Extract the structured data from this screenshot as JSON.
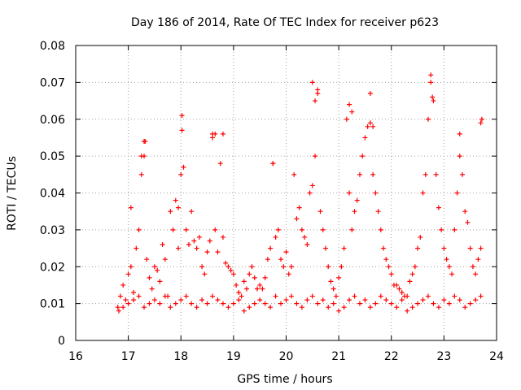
{
  "chart_data": {
    "type": "scatter",
    "title": "Day 186 of 2014, Rate Of TEC Index for receiver p623",
    "xlabel": "GPS time / hours",
    "ylabel": "ROTI / TECUs",
    "xlim": [
      16,
      24
    ],
    "ylim": [
      0,
      0.08
    ],
    "x_ticks": [
      "16",
      "17",
      "18",
      "19",
      "20",
      "21",
      "22",
      "23",
      "24"
    ],
    "y_ticks": [
      "0",
      "0.01",
      "0.02",
      "0.03",
      "0.04",
      "0.05",
      "0.06",
      "0.07",
      "0.08"
    ],
    "grid": true,
    "marker": "+",
    "color": "#ff0000",
    "series": [
      {
        "name": "ROTI",
        "x": [
          16.8,
          16.85,
          16.9,
          16.95,
          17.0,
          17.05,
          17.1,
          17.15,
          17.2,
          17.25,
          17.3,
          17.32,
          17.35,
          17.4,
          17.45,
          17.5,
          17.55,
          17.6,
          17.65,
          17.7,
          17.75,
          17.8,
          17.85,
          17.9,
          17.95,
          18.0,
          18.02,
          18.05,
          18.1,
          18.15,
          18.2,
          18.25,
          18.3,
          18.35,
          18.4,
          18.45,
          18.5,
          18.55,
          18.6,
          18.65,
          18.7,
          18.75,
          18.8,
          18.85,
          18.9,
          18.95,
          19.0,
          19.05,
          19.1,
          19.15,
          19.2,
          19.25,
          19.3,
          19.35,
          19.4,
          19.45,
          19.5,
          19.55,
          19.6,
          19.65,
          19.7,
          19.75,
          19.8,
          19.85,
          19.9,
          19.95,
          20.0,
          20.05,
          20.1,
          20.15,
          20.2,
          20.25,
          20.3,
          20.35,
          20.4,
          20.45,
          20.5,
          20.55,
          20.6,
          20.65,
          20.7,
          20.75,
          20.8,
          20.85,
          20.9,
          20.95,
          21.0,
          21.05,
          21.1,
          21.15,
          21.2,
          21.25,
          21.3,
          21.35,
          21.4,
          21.45,
          21.5,
          21.55,
          21.6,
          21.65,
          21.7,
          21.75,
          21.8,
          21.85,
          21.9,
          21.95,
          22.0,
          22.05,
          22.1,
          22.15,
          22.2,
          22.25,
          22.3,
          22.35,
          22.4,
          22.45,
          22.5,
          22.55,
          22.6,
          22.65,
          22.7,
          22.75,
          22.8,
          22.85,
          22.9,
          22.95,
          23.0,
          23.05,
          23.1,
          23.15,
          23.2,
          23.25,
          23.3,
          23.35,
          23.4,
          23.45,
          23.5,
          23.55,
          23.6,
          23.65,
          23.7,
          23.72,
          16.82,
          16.9,
          17.0,
          17.1,
          17.2,
          17.3,
          17.4,
          17.5,
          17.6,
          17.7,
          17.8,
          17.9,
          18.0,
          18.1,
          18.2,
          18.3,
          18.4,
          18.5,
          18.6,
          18.7,
          18.8,
          18.9,
          19.0,
          19.1,
          19.2,
          19.3,
          19.4,
          19.5,
          19.6,
          19.7,
          19.8,
          19.9,
          20.0,
          20.1,
          20.2,
          20.3,
          20.4,
          20.5,
          20.6,
          20.7,
          20.8,
          20.9,
          21.0,
          21.1,
          21.2,
          21.3,
          21.4,
          21.5,
          21.6,
          21.7,
          21.8,
          21.9,
          22.0,
          22.1,
          22.2,
          22.3,
          22.4,
          22.5,
          22.6,
          22.7,
          22.8,
          22.9,
          23.0,
          23.1,
          23.2,
          23.3,
          23.4,
          23.5,
          23.6,
          23.7,
          17.05,
          17.25,
          17.3,
          17.95,
          18.02,
          18.6,
          18.65,
          18.8,
          19.75,
          20.5,
          20.55,
          20.6,
          21.2,
          21.25,
          21.6,
          21.65,
          22.75,
          22.78,
          23.3,
          23.7
        ],
        "y": [
          0.009,
          0.012,
          0.015,
          0.011,
          0.018,
          0.02,
          0.013,
          0.025,
          0.03,
          0.045,
          0.05,
          0.054,
          0.022,
          0.017,
          0.014,
          0.02,
          0.019,
          0.016,
          0.026,
          0.022,
          0.012,
          0.035,
          0.03,
          0.038,
          0.025,
          0.045,
          0.057,
          0.047,
          0.03,
          0.026,
          0.035,
          0.027,
          0.025,
          0.028,
          0.02,
          0.018,
          0.024,
          0.027,
          0.055,
          0.03,
          0.024,
          0.048,
          0.028,
          0.021,
          0.02,
          0.019,
          0.018,
          0.015,
          0.013,
          0.012,
          0.016,
          0.014,
          0.018,
          0.02,
          0.017,
          0.014,
          0.015,
          0.014,
          0.017,
          0.022,
          0.025,
          0.048,
          0.028,
          0.03,
          0.022,
          0.02,
          0.024,
          0.018,
          0.02,
          0.045,
          0.033,
          0.036,
          0.03,
          0.028,
          0.026,
          0.04,
          0.042,
          0.05,
          0.068,
          0.035,
          0.03,
          0.025,
          0.02,
          0.016,
          0.014,
          0.012,
          0.017,
          0.02,
          0.025,
          0.06,
          0.04,
          0.03,
          0.035,
          0.038,
          0.045,
          0.05,
          0.055,
          0.058,
          0.067,
          0.045,
          0.04,
          0.035,
          0.03,
          0.025,
          0.022,
          0.02,
          0.018,
          0.015,
          0.015,
          0.014,
          0.013,
          0.012,
          0.012,
          0.016,
          0.018,
          0.02,
          0.025,
          0.028,
          0.04,
          0.045,
          0.06,
          0.07,
          0.065,
          0.045,
          0.036,
          0.03,
          0.025,
          0.022,
          0.02,
          0.018,
          0.03,
          0.04,
          0.05,
          0.045,
          0.035,
          0.032,
          0.025,
          0.02,
          0.018,
          0.022,
          0.025,
          0.06,
          0.008,
          0.009,
          0.01,
          0.011,
          0.012,
          0.009,
          0.01,
          0.011,
          0.01,
          0.012,
          0.009,
          0.01,
          0.011,
          0.012,
          0.01,
          0.009,
          0.011,
          0.01,
          0.012,
          0.011,
          0.01,
          0.009,
          0.01,
          0.011,
          0.008,
          0.009,
          0.01,
          0.011,
          0.01,
          0.009,
          0.012,
          0.01,
          0.011,
          0.012,
          0.01,
          0.009,
          0.011,
          0.012,
          0.01,
          0.011,
          0.009,
          0.01,
          0.008,
          0.009,
          0.011,
          0.012,
          0.01,
          0.011,
          0.009,
          0.01,
          0.012,
          0.011,
          0.01,
          0.009,
          0.011,
          0.008,
          0.009,
          0.01,
          0.011,
          0.012,
          0.01,
          0.009,
          0.011,
          0.01,
          0.012,
          0.011,
          0.009,
          0.01,
          0.011,
          0.012,
          0.036,
          0.05,
          0.054,
          0.036,
          0.061,
          0.056,
          0.056,
          0.056,
          0.048,
          0.07,
          0.065,
          0.067,
          0.064,
          0.062,
          0.059,
          0.058,
          0.072,
          0.066,
          0.056,
          0.059
        ]
      }
    ]
  }
}
